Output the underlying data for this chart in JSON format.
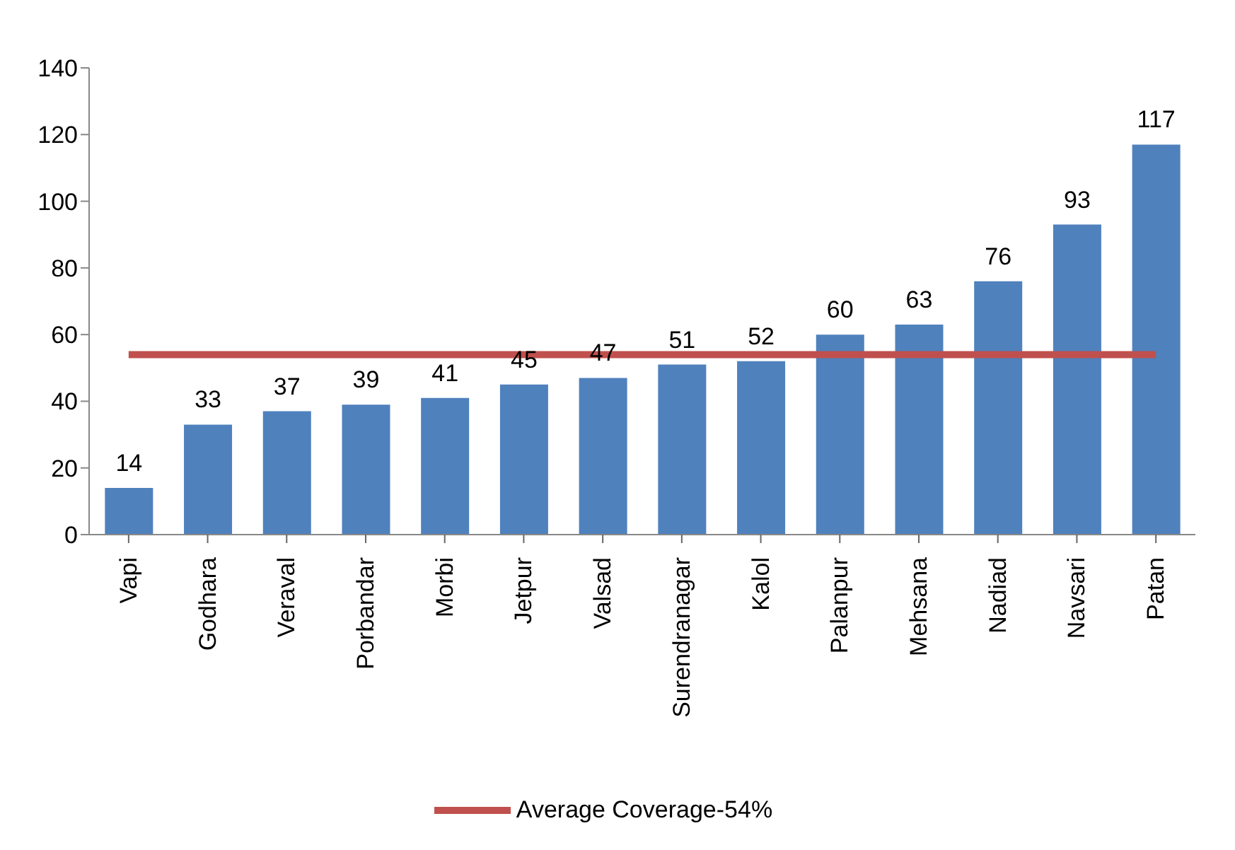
{
  "chart_data": {
    "type": "bar",
    "categories": [
      "Vapi",
      "Godhara",
      "Veraval",
      "Porbandar",
      "Morbi",
      "Jetpur",
      "Valsad",
      "Surendranagar",
      "Kalol",
      "Palanpur",
      "Mehsana",
      "Nadiad",
      "Navsari",
      "Patan"
    ],
    "values": [
      14,
      33,
      37,
      39,
      41,
      45,
      47,
      51,
      52,
      60,
      63,
      76,
      93,
      117
    ],
    "color": "#4f81bd",
    "data_labels": true,
    "ylim": [
      0,
      140
    ],
    "yticks": [
      0,
      20,
      40,
      60,
      80,
      100,
      120,
      140
    ],
    "legend": "bottom",
    "ref_lines": [
      {
        "axis": "y",
        "value": 54,
        "label": "Average Coverage-54%",
        "color": "#c0504d"
      }
    ]
  }
}
